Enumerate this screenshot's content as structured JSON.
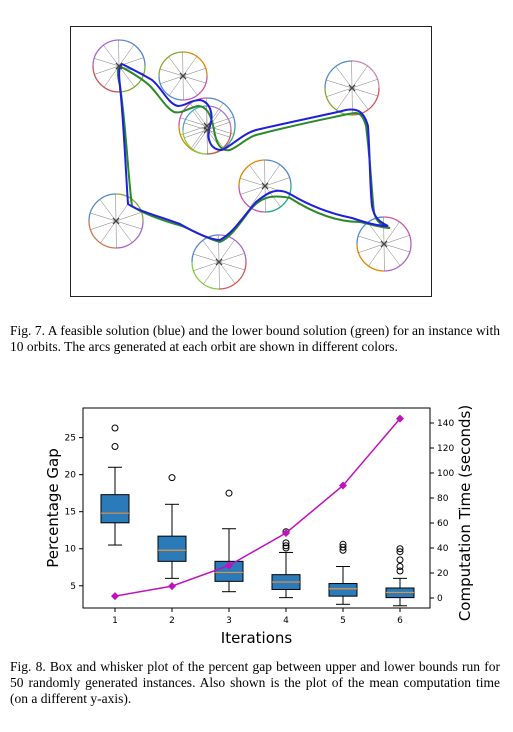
{
  "fig7": {
    "caption": "Fig. 7.   A feasible solution (blue) and the lower bound solution (green) for an instance with 10 orbits. The arcs generated at each orbit are shown in different colors.",
    "colors": {
      "feasible": "#1f1fdc",
      "lower_bound": "#2a8a2a",
      "frame": "#000000"
    }
  },
  "fig8": {
    "caption": "Fig. 8.   Box and whisker plot of the percent gap between upper and lower bounds run for 50 randomly generated instances. Also shown is the plot of the mean computation time (on a different y-axis)."
  },
  "chart_data": {
    "type": "box",
    "xlabel": "Iterations",
    "ylabel": "Percentage Gap",
    "y2label": "Computation Time (seconds)",
    "categories": [
      "1",
      "2",
      "3",
      "4",
      "5",
      "6"
    ],
    "ylim": [
      2,
      29
    ],
    "y2lim": [
      -8,
      152
    ],
    "yticks": [
      5,
      10,
      15,
      20,
      25
    ],
    "y2ticks": [
      0,
      20,
      40,
      60,
      80,
      100,
      120,
      140
    ],
    "box_color": "#2b7bba",
    "median_color": "#e8913a",
    "line_color": "#c010c0",
    "boxes": [
      {
        "x": "1",
        "whislo": 10.5,
        "q1": 13.5,
        "med": 14.8,
        "q3": 17.3,
        "whishi": 21.0,
        "fliers": [
          23.8,
          26.3
        ]
      },
      {
        "x": "2",
        "whislo": 6.0,
        "q1": 8.3,
        "med": 9.8,
        "q3": 11.7,
        "whishi": 16.0,
        "fliers": [
          19.6
        ]
      },
      {
        "x": "3",
        "whislo": 4.2,
        "q1": 5.6,
        "med": 6.8,
        "q3": 8.3,
        "whishi": 12.7,
        "fliers": [
          17.5
        ]
      },
      {
        "x": "4",
        "whislo": 3.4,
        "q1": 4.5,
        "med": 5.5,
        "q3": 6.5,
        "whishi": 9.5,
        "fliers": [
          12.3,
          10.8,
          10.4,
          10.1
        ]
      },
      {
        "x": "5",
        "whislo": 2.5,
        "q1": 3.6,
        "med": 4.6,
        "q3": 5.3,
        "whishi": 7.6,
        "fliers": [
          9.8,
          10.2,
          10.6
        ]
      },
      {
        "x": "6",
        "whislo": 2.3,
        "q1": 3.4,
        "med": 4.1,
        "q3": 4.7,
        "whishi": 6.0,
        "fliers": [
          7.0,
          7.6,
          8.5,
          9.6,
          10.0
        ]
      }
    ],
    "series": [
      {
        "values": [
          1.5,
          9.5,
          26.0,
          52.0,
          90.0,
          143.5
        ]
      }
    ]
  }
}
